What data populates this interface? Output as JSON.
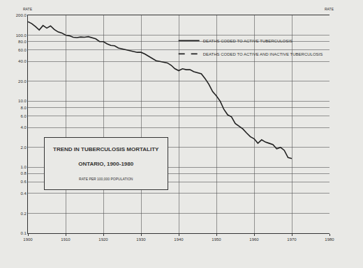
{
  "chart_data": {
    "type": "line",
    "title": "TREND IN TUBERCULOSIS MORTALITY",
    "subtitle": "ONTARIO, 1900-1980",
    "annotations": [
      "RATE PER 100,000 POPULATION"
    ],
    "ylabel": "RATE",
    "log": "y",
    "grid": true,
    "legend": "top right",
    "x": [
      1900,
      1901,
      1902,
      1903,
      1904,
      1905,
      1906,
      1907,
      1908,
      1909,
      1910,
      1911,
      1912,
      1913,
      1914,
      1915,
      1916,
      1917,
      1918,
      1919,
      1920,
      1921,
      1922,
      1923,
      1924,
      1925,
      1926,
      1927,
      1928,
      1929,
      1930,
      1931,
      1932,
      1933,
      1934,
      1935,
      1936,
      1937,
      1938,
      1939,
      1940,
      1941,
      1942,
      1943,
      1944,
      1945,
      1946,
      1947,
      1948,
      1949,
      1950,
      1951,
      1952,
      1953,
      1954,
      1955,
      1956,
      1957,
      1958,
      1959,
      1960,
      1961,
      1962,
      1963,
      1964,
      1965,
      1966,
      1967,
      1968,
      1969,
      1970
    ],
    "series": [
      {
        "name": "DEATHS CODED TO ACTIVE TUBERCULOSIS",
        "color": "#222222",
        "line_style": "solid",
        "values": [
          160,
          150,
          135,
          120,
          140,
          128,
          138,
          122,
          112,
          108,
          100,
          98,
          93,
          92,
          94,
          93,
          95,
          92,
          88,
          80,
          80,
          74,
          70,
          69,
          64,
          62,
          60,
          59,
          57,
          55,
          55,
          52,
          48,
          44,
          41,
          40,
          39,
          38,
          35,
          31,
          29,
          31,
          30,
          30,
          28,
          27,
          26,
          22,
          18,
          14,
          12,
          10,
          7.5,
          6.2,
          5.8,
          4.6,
          4.2,
          3.8,
          3.3,
          2.9,
          2.7,
          2.3,
          2.6,
          2.4,
          2.3,
          2.2,
          1.9,
          2.0,
          1.8,
          1.4,
          1.35
        ]
      },
      {
        "name": "DEATHS CODED TO ACTIVE AND INACTIVE TUBERCULOSIS",
        "color": "#222222",
        "line_style": "dash",
        "values": [
          null,
          null,
          null,
          null,
          null,
          null,
          null,
          null,
          null,
          null,
          null,
          null,
          null,
          null,
          null,
          null,
          null,
          null,
          null,
          null,
          null,
          null,
          null,
          null,
          null,
          null,
          null,
          null,
          null,
          null,
          null,
          null,
          null,
          null,
          null,
          null,
          null,
          null,
          null,
          null,
          null,
          null,
          null,
          null,
          null,
          null,
          null,
          null,
          null,
          null,
          null,
          null,
          null,
          null,
          null,
          null,
          null,
          null,
          null,
          null,
          null,
          null,
          null,
          null,
          null,
          null,
          null,
          null,
          null,
          null,
          null
        ]
      }
    ],
    "xlim": [
      1900,
      1980
    ],
    "xticks": [
      1900,
      1910,
      1920,
      1930,
      1940,
      1950,
      1960,
      1970,
      1980
    ],
    "ylim": [
      0.1,
      200
    ],
    "yticks": [
      0.1,
      0.2,
      0.4,
      0.6,
      0.8,
      {
        "value": 1,
        "label": "1.0"
      },
      {
        "value": 2,
        "label": "2.0"
      },
      {
        "value": 4,
        "label": "4.0"
      },
      {
        "value": 6,
        "label": "6.0"
      },
      {
        "value": 8,
        "label": "8.0"
      },
      {
        "value": 10,
        "label": "10.0"
      },
      {
        "value": 20,
        "label": "20.0"
      },
      {
        "value": 40,
        "label": "40.0"
      },
      {
        "value": 60,
        "label": "60.0"
      },
      {
        "value": 80,
        "label": "80.0"
      },
      {
        "value": 100,
        "label": "100.0"
      },
      {
        "value": 200,
        "label": "200.0"
      }
    ]
  }
}
